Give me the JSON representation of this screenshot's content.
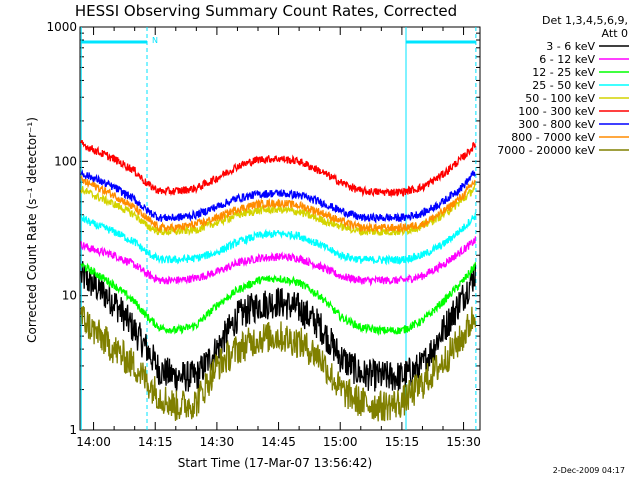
{
  "chart_data": {
    "type": "line",
    "title": "HESSI Observing Summary Count Rates, Corrected",
    "xlabel": "Start Time (17-Mar-07 13:56:42)",
    "ylabel": "Corrected Count Rate (s⁻¹ detector⁻¹)",
    "y_scale": "log",
    "ylim": [
      1,
      1000
    ],
    "xlim": [
      "13:56:42",
      "15:34:00"
    ],
    "x_ticks": [
      "14:00",
      "14:15",
      "14:30",
      "14:45",
      "15:00",
      "15:15",
      "15:30"
    ],
    "y_ticks": [
      "1",
      "10",
      "100",
      "1000"
    ],
    "legend_header": [
      "Det 1,3,4,5,6,9,",
      "Att 0"
    ],
    "legend_position": "right",
    "footer_date": "2-Dec-2009 04:17",
    "attenuator_marker": "N",
    "time_points": [
      "13:57",
      "14:00",
      "14:05",
      "14:10",
      "14:13",
      "14:16",
      "14:20",
      "14:25",
      "14:30",
      "14:35",
      "14:40",
      "14:45",
      "14:50",
      "14:55",
      "15:00",
      "15:05",
      "15:10",
      "15:15",
      "15:20",
      "15:25",
      "15:30",
      "15:33"
    ],
    "series": [
      {
        "name": "3 - 6 keV",
        "color": "#000000",
        "values": [
          14,
          12,
          9,
          5.5,
          4,
          2.8,
          2.5,
          2.5,
          4,
          7,
          8.5,
          9,
          8,
          6,
          3.5,
          2.6,
          2.5,
          2.5,
          3,
          5.5,
          10,
          15
        ]
      },
      {
        "name": "6 - 12 keV",
        "color": "#ff00ff",
        "values": [
          24,
          22,
          20,
          17,
          14.5,
          13,
          13,
          13.5,
          15,
          17.5,
          19,
          19.5,
          19,
          16.5,
          14,
          13,
          13,
          13,
          14,
          17,
          22,
          26
        ]
      },
      {
        "name": "12 - 25 keV",
        "color": "#00ff00",
        "values": [
          17,
          15,
          12,
          9,
          7,
          5.8,
          5.5,
          6,
          8.5,
          11,
          13,
          13.5,
          12.5,
          10,
          7,
          5.8,
          5.5,
          5.5,
          6.5,
          9,
          13,
          17
        ]
      },
      {
        "name": "25 - 50 keV",
        "color": "#00ffff",
        "values": [
          38,
          34,
          30,
          25,
          21,
          18.5,
          18.5,
          19,
          21,
          25,
          28,
          29,
          28,
          24,
          20,
          18.5,
          18.5,
          18.5,
          20,
          24,
          32,
          40
        ]
      },
      {
        "name": "50 - 100 keV",
        "color": "#d4d400",
        "values": [
          62,
          56,
          48,
          40,
          33,
          30,
          30,
          31,
          35,
          40,
          43,
          44,
          42,
          37,
          33,
          30,
          30,
          30,
          33,
          40,
          52,
          65
        ]
      },
      {
        "name": "100 - 300 keV",
        "color": "#ff0000",
        "values": [
          135,
          122,
          104,
          85,
          68,
          60,
          60,
          63,
          75,
          92,
          103,
          105,
          100,
          85,
          70,
          60,
          59,
          59,
          64,
          80,
          108,
          135
        ]
      },
      {
        "name": "300 - 800 keV",
        "color": "#0000ff",
        "values": [
          82,
          75,
          64,
          52,
          43,
          38,
          38,
          40,
          46,
          53,
          57,
          58,
          56,
          50,
          43,
          38,
          38,
          38,
          41,
          50,
          66,
          85
        ]
      },
      {
        "name": "800 - 7000 keV",
        "color": "#ff8c00",
        "values": [
          72,
          66,
          56,
          45,
          37,
          32,
          32,
          34,
          38,
          44,
          48,
          49,
          47,
          42,
          36,
          32,
          32,
          32,
          34,
          42,
          56,
          73
        ]
      },
      {
        "name": "7000 - 20000 keV",
        "color": "#808000",
        "values": [
          7,
          5.5,
          4,
          3,
          2.3,
          1.8,
          1.5,
          1.6,
          3,
          4,
          4.8,
          5,
          4.5,
          3.5,
          2,
          1.6,
          1.5,
          1.6,
          2.2,
          3.2,
          5,
          7.5
        ]
      }
    ],
    "markers": {
      "color": "#00e5ff",
      "solid_vertical_times": [
        "13:57",
        "15:16"
      ],
      "dashed_vertical_times": [
        "14:13",
        "15:33"
      ],
      "bars": [
        [
          "13:57",
          "14:13"
        ],
        [
          "15:16",
          "15:33"
        ]
      ]
    }
  }
}
